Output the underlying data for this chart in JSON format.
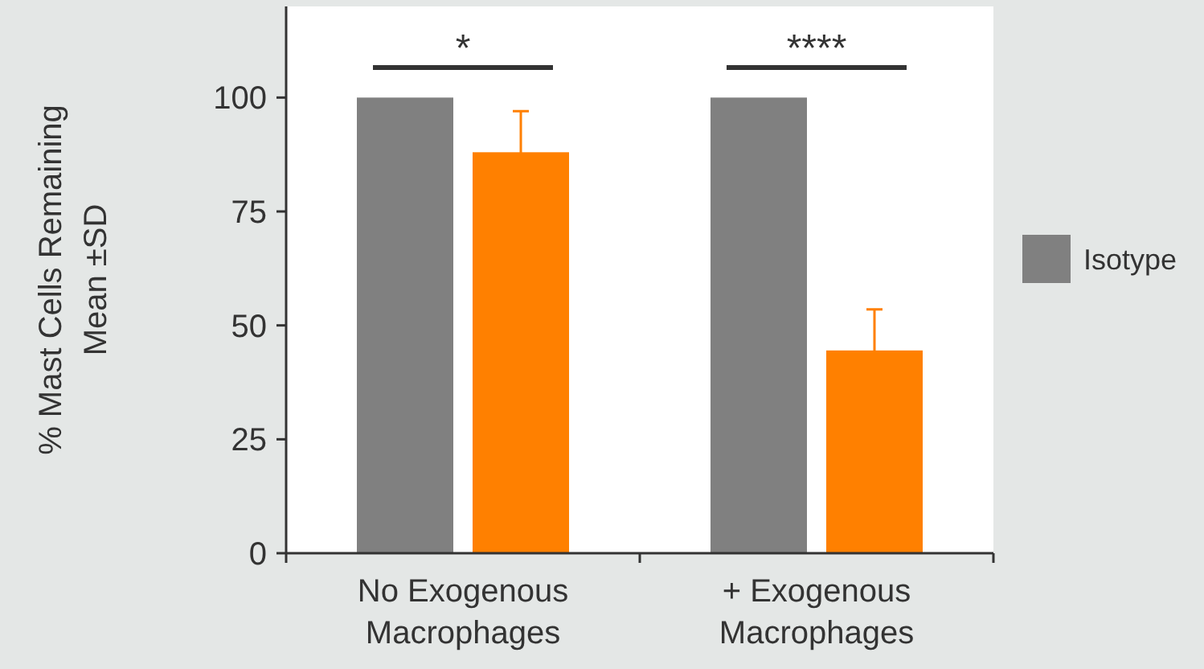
{
  "chart_data": {
    "type": "bar",
    "ylabel": "% Mast Cells Remaining\nMean ±SD",
    "categories": [
      "No Exogenous\nMacrophages",
      "+ Exogenous\nMacrophages"
    ],
    "series": [
      {
        "name": "Isotype",
        "color": "#808080",
        "values": [
          100,
          100
        ]
      },
      {
        "color": "#ff8000",
        "values": [
          88,
          44.5
        ],
        "errors": [
          9,
          9
        ]
      }
    ],
    "ylim": [
      0,
      120
    ],
    "yticks": [
      0,
      25,
      50,
      75,
      100
    ],
    "grid": false,
    "legend": "right",
    "annotations": [
      "*",
      "****"
    ]
  }
}
